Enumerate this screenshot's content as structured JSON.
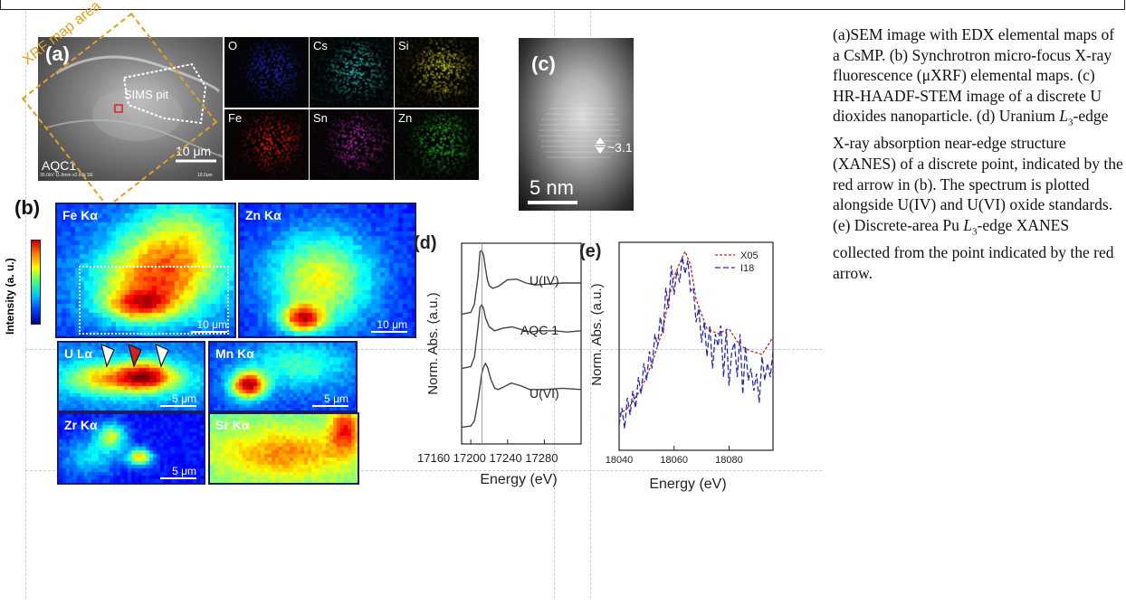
{
  "panels": {
    "a": {
      "letter": "(a)",
      "xrf_area_label": "XRF map area",
      "sims_label": "SIMS pit",
      "scale": "10 μm",
      "sample": "AQC1",
      "meta": "30.0kV 11.8mm x2.99k SE",
      "meta_scale": "10.0um",
      "edx": [
        {
          "el": "O",
          "color": "#1f2fd8"
        },
        {
          "el": "Cs",
          "color": "#2ec8c8"
        },
        {
          "el": "Si",
          "color": "#e8e020"
        },
        {
          "el": "Fe",
          "color": "#e81818"
        },
        {
          "el": "Sn",
          "color": "#b82ab0"
        },
        {
          "el": "Zn",
          "color": "#28c828"
        }
      ]
    },
    "b": {
      "letter": "(b)",
      "intensity_label": "Intensity (a. u.)",
      "maps": [
        {
          "name": "Fe Kα",
          "scale": "10 μm"
        },
        {
          "name": "Zn Kα",
          "scale": "10 μm"
        },
        {
          "name": "U Lα",
          "scale": "5 μm"
        },
        {
          "name": "Mn Kα",
          "scale": "5 μm"
        },
        {
          "name": "Zr Kα",
          "scale": "5 μm"
        },
        {
          "name": "Sr Kα",
          "scale": ""
        }
      ]
    },
    "c": {
      "letter": "(c)",
      "spacing": "~3.1  Å",
      "scale": "5 nm"
    }
  },
  "chart_data": [
    {
      "type": "line",
      "panel": "(d)",
      "xlabel": "Energy (eV)",
      "ylabel": "Norm. Abs. (a.u.)",
      "xlim": [
        17160,
        17280
      ],
      "xticks": [
        "17160",
        "17200",
        "17240",
        "17280"
      ],
      "xtick_text": "17160 17200 17240 17280",
      "series": [
        {
          "name": "U(IV)",
          "x": [
            17150,
            17160,
            17164,
            17168,
            17170,
            17172,
            17174,
            17176,
            17178,
            17180,
            17184,
            17190,
            17200,
            17210,
            17220,
            17230,
            17240,
            17260,
            17280
          ],
          "y": [
            0.02,
            0.05,
            0.18,
            0.62,
            0.98,
            1.0,
            0.92,
            0.72,
            0.55,
            0.46,
            0.42,
            0.45,
            0.55,
            0.56,
            0.5,
            0.47,
            0.48,
            0.5,
            0.5
          ]
        },
        {
          "name": "AQC 1",
          "x": [
            17150,
            17160,
            17164,
            17168,
            17170,
            17172,
            17174,
            17176,
            17180,
            17186,
            17195,
            17205,
            17215,
            17225,
            17235,
            17250,
            17265,
            17280
          ],
          "y": [
            0.02,
            0.05,
            0.2,
            0.68,
            0.96,
            1.0,
            0.93,
            0.8,
            0.66,
            0.6,
            0.64,
            0.66,
            0.62,
            0.58,
            0.6,
            0.6,
            0.58,
            0.6
          ]
        },
        {
          "name": "U(VI)",
          "x": [
            17150,
            17160,
            17164,
            17168,
            17172,
            17174,
            17176,
            17178,
            17182,
            17186,
            17190,
            17196,
            17204,
            17214,
            17224,
            17240,
            17260,
            17280
          ],
          "y": [
            0.02,
            0.04,
            0.12,
            0.45,
            0.85,
            0.95,
            1.0,
            0.95,
            0.75,
            0.62,
            0.6,
            0.64,
            0.7,
            0.66,
            0.6,
            0.6,
            0.62,
            0.6
          ]
        }
      ]
    },
    {
      "type": "line",
      "panel": "(e)",
      "xlabel": "Energy (eV)",
      "ylabel": "Norm. Abs. (a.u.)",
      "xlim": [
        18040,
        18096
      ],
      "xticks": [
        "18040",
        "18060",
        "18080"
      ],
      "series": [
        {
          "name": "X05",
          "x": [
            18040,
            18044,
            18048,
            18052,
            18056,
            18058,
            18060,
            18062,
            18064,
            18066,
            18068,
            18072,
            18076,
            18080,
            18084,
            18088,
            18092,
            18096
          ],
          "y": [
            0.05,
            0.1,
            0.2,
            0.35,
            0.55,
            0.72,
            0.85,
            0.93,
            1.0,
            0.92,
            0.72,
            0.55,
            0.52,
            0.55,
            0.45,
            0.42,
            0.4,
            0.5
          ]
        },
        {
          "name": "I18",
          "x": [
            18040,
            18041,
            18042,
            18043,
            18044,
            18045,
            18046,
            18047,
            18048,
            18049,
            18050,
            18051,
            18052,
            18053,
            18054,
            18055,
            18056,
            18057,
            18058,
            18059,
            18060,
            18061,
            18062,
            18063,
            18064,
            18065,
            18066,
            18067,
            18068,
            18069,
            18070,
            18071,
            18072,
            18073,
            18074,
            18075,
            18076,
            18077,
            18078,
            18079,
            18080,
            18081,
            18082,
            18083,
            18084,
            18085,
            18086,
            18087,
            18088,
            18089,
            18090,
            18091,
            18092,
            18093,
            18094,
            18095,
            18096
          ],
          "y": [
            0.02,
            0.12,
            0.0,
            0.18,
            0.08,
            0.22,
            0.12,
            0.3,
            0.2,
            0.38,
            0.28,
            0.45,
            0.35,
            0.55,
            0.48,
            0.65,
            0.55,
            0.82,
            0.7,
            0.95,
            0.78,
            0.92,
            0.85,
            1.0,
            0.9,
            0.98,
            0.8,
            0.82,
            0.62,
            0.7,
            0.5,
            0.62,
            0.42,
            0.6,
            0.35,
            0.55,
            0.48,
            0.6,
            0.3,
            0.58,
            0.25,
            0.45,
            0.5,
            0.3,
            0.55,
            0.2,
            0.48,
            0.28,
            0.35,
            0.22,
            0.32,
            0.15,
            0.42,
            0.28,
            0.38,
            0.3,
            0.45
          ]
        }
      ]
    }
  ],
  "caption": {
    "part1": "(a)SEM image with EDX elemental maps of a CsMP. (b) Synchrotron micro-focus X-ray fluorescence (μXRF) elemental maps. (c) HR-HAADF-STEM image of a discrete U dioxides nanoparticle. (d) Uranium ",
    "l3_a": "L",
    "sub3_a": "3",
    "part2": "-edge X-ray absorption near-edge structure (XANES) of a discrete point, indicated by the red arrow in (b). The spectrum is plotted alongside U(IV) and U(VI) oxide standards. (e) Discrete-area Pu ",
    "l3_b": "L",
    "sub3_b": "3",
    "part3": "-edge XANES collected from the point indicated by the red arrow."
  },
  "colors": {
    "frame": "#222222",
    "guide": "#cccccc",
    "xrf_box": "#e0a020",
    "arrow_red": "#d42020"
  }
}
